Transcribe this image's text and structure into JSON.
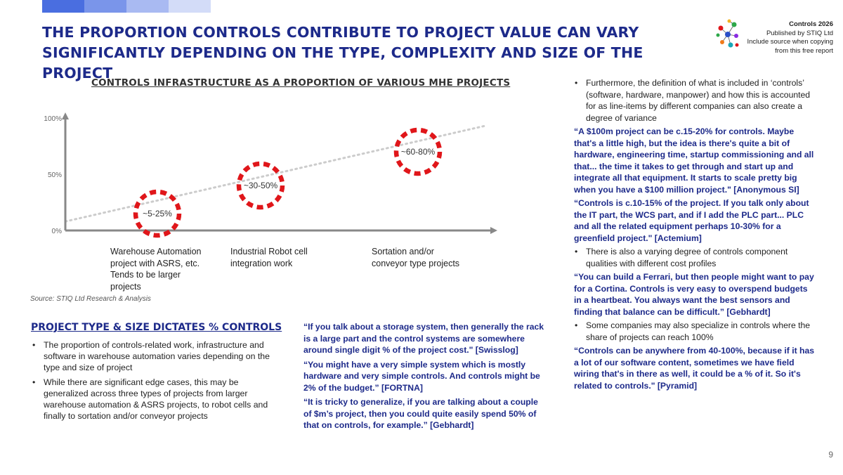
{
  "colors": {
    "title": "#1d2a8a",
    "quote": "#1d2a8a",
    "circle": "#e0161a",
    "axis": "#888888",
    "trend": "#cccccc",
    "topbar": [
      "#4a6ee0",
      "#7a95ea",
      "#a9baf2",
      "#d3dcf8"
    ]
  },
  "title": "THE PROPORTION CONTROLS CONTRIBUTE TO PROJECT VALUE CAN VARY SIGNIFICANTLY DEPENDING ON THE TYPE, COMPLEXITY AND SIZE OF THE PROJECT",
  "brand": {
    "name": "Controls 2026",
    "publisher": "Published by STIQ Ltd",
    "line3": "Include source when copying",
    "line4": "from this free report",
    "logo_icon": "molecule-dots-icon"
  },
  "chart_data": {
    "type": "scatter",
    "title": "CONTROLS INFRASTRUCTURE AS A PROPORTION OF VARIOUS MHE PROJECTS",
    "y_ticks": [
      "100%",
      "50%",
      "0%"
    ],
    "ylim": [
      0,
      100
    ],
    "categories": [
      "Warehouse Automation project with ASRS, etc. Tends to be larger projects",
      "Industrial Robot cell integration work",
      "Sortation and/or conveyor type projects"
    ],
    "category_lines": [
      [
        "Warehouse Automation",
        "project with ASRS, etc.",
        "Tends to be larger",
        "projects"
      ],
      [
        "Industrial Robot cell",
        "integration work"
      ],
      [
        "Sortation and/or",
        "conveyor type projects"
      ]
    ],
    "points": [
      {
        "label": "~5-25%",
        "low": 5,
        "high": 25
      },
      {
        "label": "~30-50%",
        "low": 30,
        "high": 50
      },
      {
        "label": "~60-80%",
        "low": 60,
        "high": 80
      }
    ],
    "trend_line": {
      "from": 8,
      "to": 93,
      "style": "dotted"
    },
    "grid": false
  },
  "source": "Source: STIQ Ltd Research & Analysis",
  "section": {
    "title": "PROJECT TYPE & SIZE DICTATES % CONTROLS",
    "bullets": [
      "The proportion of controls-related work, infrastructure and software in warehouse automation varies depending on the type and size of project",
      "While there are significant edge cases, this may be generalized across three types of projects from larger warehouse automation & ASRS projects, to robot cells and finally to sortation and/or conveyor projects"
    ]
  },
  "mid_quotes": [
    "“If you talk about a storage system, then generally the rack is a large part and the control systems are somewhere around single digit % of the project cost.\" [Swisslog]",
    "“You might have a very simple system which is mostly hardware and very simple controls. And controls might be 2% of the budget.” [FORTNA]",
    "“It is tricky to generalize, if you are talking about a couple of $m’s project, then you could quite easily spend 50% of that on controls, for example.” [Gebhardt]"
  ],
  "right_col": {
    "bullet1": "Furthermore, the definition of what is included in ‘controls’ (software, hardware, manpower) and how this is accounted for as line-items by different companies can also create a degree of variance",
    "quote1": "“A $100m project can be c.15-20% for controls. Maybe that's a little high, but the idea is there's quite a bit of hardware, engineering time, startup commissioning and all that... the time it takes to get through and start up and integrate all that equipment. It starts to scale pretty big when you have a $100 million project.\" [Anonymous SI]",
    "quote2": "“Controls is c.10-15% of the project. If you talk only about the IT part, the WCS part, and if I add the PLC part... PLC and all the related equipment perhaps 10-30% for a greenfield project.\" [Actemium]",
    "bullet2": "There is also a varying degree of controls component qualities with different cost profiles",
    "quote3": "“You can build a Ferrari, but then people might want to pay for a Cortina. Controls is very easy to overspend budgets in a heartbeat. You always want the best sensors and finding that balance can be difficult.” [Gebhardt]",
    "bullet3": "Some companies may also specialize in controls where the share of projects can reach 100%",
    "quote4": "“Controls can be anywhere from 40-100%, because if it has a lot of our software content, sometimes we have field wiring that's in there as well, it could be a % of it. So it's related to controls.\" [Pyramid]"
  },
  "page_number": "9"
}
